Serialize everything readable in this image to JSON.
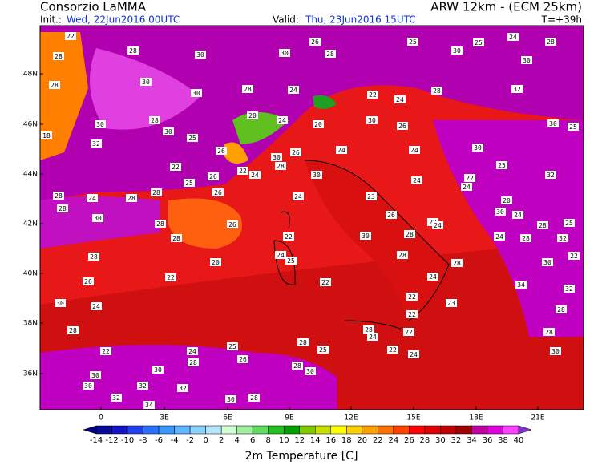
{
  "header": {
    "title": "Consorzio LaMMA",
    "model": "ARW 12km - (ECM 25km)",
    "init_label": "Init.:",
    "init_time": "Wed, 22Jun2016 00UTC",
    "valid_label": "Valid:",
    "valid_time": "Thu, 23Jun2016 15UTC",
    "lead": "T=+39h"
  },
  "map": {
    "lat_labels": [
      "48N",
      "46N",
      "44N",
      "42N",
      "40N",
      "38N",
      "36N"
    ],
    "lon_labels": [
      "0",
      "3E",
      "6E",
      "9E",
      "12E",
      "15E",
      "18E",
      "21E"
    ],
    "labels": [
      22,
      28,
      28,
      30,
      30,
      26,
      28,
      25,
      30,
      25,
      24,
      28,
      30,
      28,
      30,
      30,
      28,
      24,
      22,
      24,
      28,
      32,
      30,
      28,
      30,
      25,
      20,
      24,
      20,
      30,
      26,
      30,
      25,
      18,
      32,
      26,
      30,
      26,
      24,
      24,
      30,
      25,
      22,
      26,
      22,
      24,
      28,
      30,
      24,
      22,
      32,
      28,
      24,
      28,
      28,
      25,
      26,
      24,
      23,
      24,
      20,
      28,
      30,
      28,
      26,
      26,
      23,
      30,
      24,
      30,
      28,
      24,
      24,
      28,
      28,
      25,
      32,
      22,
      28,
      28,
      24,
      25,
      28,
      28,
      30,
      22,
      26,
      22,
      20,
      22,
      24,
      34,
      32,
      30,
      24,
      22,
      23,
      22,
      28,
      28,
      28,
      22,
      28,
      22,
      24,
      25,
      28,
      25,
      24,
      22,
      24,
      30,
      28,
      26,
      28,
      30,
      30,
      30,
      30,
      32,
      32,
      32,
      30,
      28,
      34
    ]
  },
  "colorbar": {
    "title": "2m Temperature [C]",
    "labels": [
      -14,
      -12,
      -10,
      -8,
      -6,
      -4,
      -2,
      0,
      2,
      4,
      6,
      8,
      10,
      12,
      14,
      16,
      18,
      20,
      22,
      24,
      26,
      28,
      30,
      32,
      34,
      36,
      38,
      40
    ],
    "colors": [
      "#0a0a9a",
      "#1414c8",
      "#2040f0",
      "#2870ff",
      "#3c96ff",
      "#60b4ff",
      "#8cd2ff",
      "#b4e6ff",
      "#d2ffd2",
      "#a0f0a0",
      "#60dc60",
      "#20c020",
      "#00a000",
      "#80c800",
      "#c8e000",
      "#ffff00",
      "#ffd000",
      "#ffa000",
      "#ff7000",
      "#ff4000",
      "#ff0000",
      "#e00000",
      "#c00000",
      "#a00000",
      "#c000a0",
      "#e000e0",
      "#ff40ff"
    ],
    "under_color": "#000080",
    "over_color": "#8030d0"
  }
}
